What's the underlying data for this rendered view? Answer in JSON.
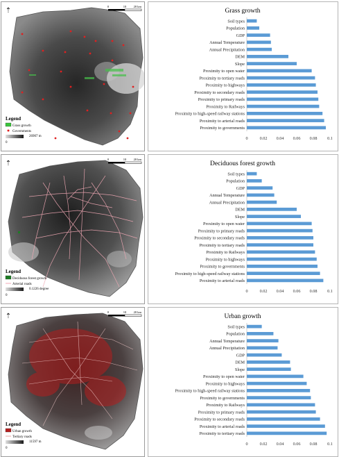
{
  "maps": [
    {
      "id": "map1",
      "legend_title": "Legend",
      "legend_items": [
        {
          "label": "Grass growth",
          "color": "#39c43a",
          "kind": "box"
        },
        {
          "label": "Governments",
          "color": "#e02020",
          "kind": "dot"
        }
      ],
      "gradient_min": "0",
      "gradient_max": "26907 m",
      "scale_labels": [
        "0",
        "10",
        "20 km"
      ]
    },
    {
      "id": "map2",
      "legend_title": "Legend",
      "legend_items": [
        {
          "label": "Deciduous forest growth",
          "color": "#1d7d24",
          "kind": "box"
        },
        {
          "label": "Arterial roads",
          "color": "#f0a8b4",
          "kind": "line"
        }
      ],
      "gradient_min": "0",
      "gradient_max": "0.1226 degree",
      "scale_labels": [
        "0",
        "10",
        "20 km"
      ]
    },
    {
      "id": "map3",
      "legend_title": "Legend",
      "legend_items": [
        {
          "label": "Urban growth",
          "color": "#b51e1e",
          "kind": "box"
        },
        {
          "label": "Tertiary roads",
          "color": "#f0c8c8",
          "kind": "line"
        }
      ],
      "gradient_min": "0",
      "gradient_max": "11597 m",
      "scale_labels": [
        "0",
        "10",
        "20 km"
      ]
    }
  ],
  "chart_data": [
    {
      "type": "bar",
      "orientation": "horizontal",
      "title": "Grass growth",
      "categories": [
        "Soil types",
        "Population",
        "GDP",
        "Annual Temperature",
        "Annual Precipitation",
        "DEM",
        "Slope",
        "Proximity to open water",
        "Proximity to tertiary roads",
        "Proximity to highways",
        "Proximity to secondary roads",
        "Proximity to primary roads",
        "Proximity to Railways",
        "Proximity to high-speed railway stations",
        "Proximity to arterial roads",
        "Proximity to governments"
      ],
      "values": [
        0.012,
        0.015,
        0.028,
        0.029,
        0.03,
        0.05,
        0.06,
        0.078,
        0.082,
        0.083,
        0.085,
        0.086,
        0.087,
        0.091,
        0.093,
        0.095
      ],
      "xlim": [
        0,
        0.1
      ],
      "xticks": [
        "0",
        "0.02",
        "0.04",
        "0.06",
        "0.08",
        "0.1"
      ],
      "color": "#5b9bd5"
    },
    {
      "type": "bar",
      "orientation": "horizontal",
      "title": "Deciduous forest growth",
      "categories": [
        "Soil types",
        "Population",
        "GDP",
        "Annual Temperature",
        "Annual Precipitation",
        "DEM",
        "Slope",
        "Proximity to open water",
        "Proximity to primary roads",
        "Proximity to secondary roads",
        "Proximity to tertiary roads",
        "Proximity to Railways",
        "Proximity to highways",
        "Proximity to governments",
        "Proximity to high-speed railway stations",
        "Proximity to arterial roads"
      ],
      "values": [
        0.012,
        0.018,
        0.031,
        0.033,
        0.036,
        0.06,
        0.065,
        0.078,
        0.079,
        0.08,
        0.08,
        0.082,
        0.084,
        0.085,
        0.088,
        0.092
      ],
      "xlim": [
        0,
        0.1
      ],
      "xticks": [
        "0",
        "0.02",
        "0.04",
        "0.06",
        "0.08",
        "0.1"
      ],
      "color": "#5b9bd5"
    },
    {
      "type": "bar",
      "orientation": "horizontal",
      "title": "Urban growth",
      "categories": [
        "Soil types",
        "Population",
        "Annual Temperature",
        "Annual Precipitation",
        "GDP",
        "DEM",
        "Slope",
        "Proximity to open water",
        "Proximity to highways",
        "Proximity to high-speed railway stations",
        "Proximity to governments",
        "Proximity to Railways",
        "Proximity to primary roads",
        "Proximity to secondary roads",
        "Proximity to arterial roads",
        "Proximity to tertiary roads"
      ],
      "values": [
        0.018,
        0.032,
        0.038,
        0.037,
        0.042,
        0.052,
        0.053,
        0.068,
        0.072,
        0.076,
        0.077,
        0.082,
        0.083,
        0.088,
        0.094,
        0.096
      ],
      "xlim": [
        0,
        0.1
      ],
      "xticks": [
        "0",
        "0.02",
        "0.04",
        "0.06",
        "0.08",
        "0.1"
      ],
      "color": "#5b9bd5"
    }
  ]
}
